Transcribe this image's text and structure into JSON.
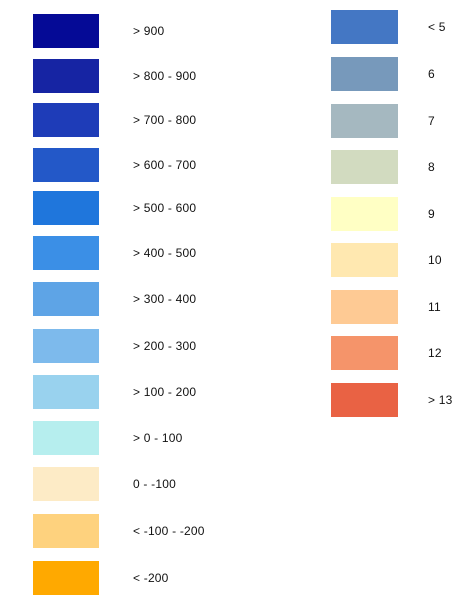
{
  "left_legend": {
    "items": [
      {
        "label": "> 900",
        "color": "#050A96"
      },
      {
        "label": "> 800 - 900",
        "color": "#1624A3"
      },
      {
        "label": "> 700 - 800",
        "color": "#1E3CB8"
      },
      {
        "label": "> 600 - 700",
        "color": "#2358C8"
      },
      {
        "label": "> 500 - 600",
        "color": "#1F76DC"
      },
      {
        "label": "> 400 - 500",
        "color": "#3B8FE6"
      },
      {
        "label": "> 300 - 400",
        "color": "#5EA4E6"
      },
      {
        "label": "> 200 - 300",
        "color": "#7DBAEC"
      },
      {
        "label": "> 100 - 200",
        "color": "#99D2EE"
      },
      {
        "label": "> 0 - 100",
        "color": "#B6EEEE"
      },
      {
        "label": "0 - -100",
        "color": "#FDEBC6"
      },
      {
        "label": "< -100 - -200",
        "color": "#FED27E"
      },
      {
        "label": "< -200",
        "color": "#FFA900"
      }
    ]
  },
  "right_legend": {
    "items": [
      {
        "label": "< 5",
        "color": "#4477C4"
      },
      {
        "label": "6",
        "color": "#7799BB"
      },
      {
        "label": "7",
        "color": "#A5B8C0"
      },
      {
        "label": "8",
        "color": "#D2DBC0"
      },
      {
        "label": "9",
        "color": "#FFFFC4"
      },
      {
        "label": "10",
        "color": "#FFE8B0"
      },
      {
        "label": "11",
        "color": "#FECA94"
      },
      {
        "label": "12",
        "color": "#F5946A"
      },
      {
        "label": "> 13",
        "color": "#E96244"
      }
    ]
  }
}
